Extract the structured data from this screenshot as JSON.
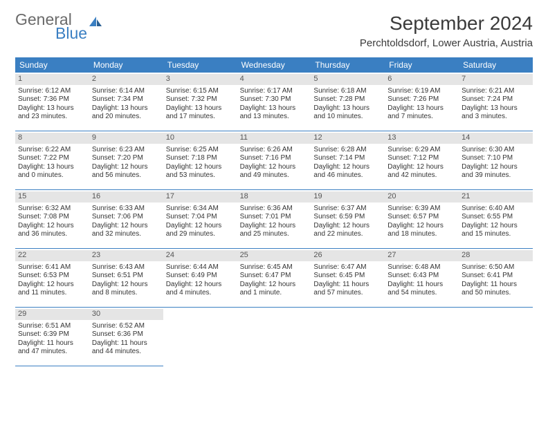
{
  "logo": {
    "text1": "General",
    "text2": "Blue"
  },
  "title": "September 2024",
  "location": "Perchtoldsdorf, Lower Austria, Austria",
  "colors": {
    "header_bg": "#3a7fc2",
    "header_text": "#ffffff",
    "daynum_bg": "#e5e5e5",
    "border": "#3a7fc2",
    "logo_gray": "#6a6a6a",
    "logo_blue": "#3a7fc2"
  },
  "day_headers": [
    "Sunday",
    "Monday",
    "Tuesday",
    "Wednesday",
    "Thursday",
    "Friday",
    "Saturday"
  ],
  "days": [
    {
      "n": "1",
      "sunrise": "Sunrise: 6:12 AM",
      "sunset": "Sunset: 7:36 PM",
      "d1": "Daylight: 13 hours",
      "d2": "and 23 minutes."
    },
    {
      "n": "2",
      "sunrise": "Sunrise: 6:14 AM",
      "sunset": "Sunset: 7:34 PM",
      "d1": "Daylight: 13 hours",
      "d2": "and 20 minutes."
    },
    {
      "n": "3",
      "sunrise": "Sunrise: 6:15 AM",
      "sunset": "Sunset: 7:32 PM",
      "d1": "Daylight: 13 hours",
      "d2": "and 17 minutes."
    },
    {
      "n": "4",
      "sunrise": "Sunrise: 6:17 AM",
      "sunset": "Sunset: 7:30 PM",
      "d1": "Daylight: 13 hours",
      "d2": "and 13 minutes."
    },
    {
      "n": "5",
      "sunrise": "Sunrise: 6:18 AM",
      "sunset": "Sunset: 7:28 PM",
      "d1": "Daylight: 13 hours",
      "d2": "and 10 minutes."
    },
    {
      "n": "6",
      "sunrise": "Sunrise: 6:19 AM",
      "sunset": "Sunset: 7:26 PM",
      "d1": "Daylight: 13 hours",
      "d2": "and 7 minutes."
    },
    {
      "n": "7",
      "sunrise": "Sunrise: 6:21 AM",
      "sunset": "Sunset: 7:24 PM",
      "d1": "Daylight: 13 hours",
      "d2": "and 3 minutes."
    },
    {
      "n": "8",
      "sunrise": "Sunrise: 6:22 AM",
      "sunset": "Sunset: 7:22 PM",
      "d1": "Daylight: 13 hours",
      "d2": "and 0 minutes."
    },
    {
      "n": "9",
      "sunrise": "Sunrise: 6:23 AM",
      "sunset": "Sunset: 7:20 PM",
      "d1": "Daylight: 12 hours",
      "d2": "and 56 minutes."
    },
    {
      "n": "10",
      "sunrise": "Sunrise: 6:25 AM",
      "sunset": "Sunset: 7:18 PM",
      "d1": "Daylight: 12 hours",
      "d2": "and 53 minutes."
    },
    {
      "n": "11",
      "sunrise": "Sunrise: 6:26 AM",
      "sunset": "Sunset: 7:16 PM",
      "d1": "Daylight: 12 hours",
      "d2": "and 49 minutes."
    },
    {
      "n": "12",
      "sunrise": "Sunrise: 6:28 AM",
      "sunset": "Sunset: 7:14 PM",
      "d1": "Daylight: 12 hours",
      "d2": "and 46 minutes."
    },
    {
      "n": "13",
      "sunrise": "Sunrise: 6:29 AM",
      "sunset": "Sunset: 7:12 PM",
      "d1": "Daylight: 12 hours",
      "d2": "and 42 minutes."
    },
    {
      "n": "14",
      "sunrise": "Sunrise: 6:30 AM",
      "sunset": "Sunset: 7:10 PM",
      "d1": "Daylight: 12 hours",
      "d2": "and 39 minutes."
    },
    {
      "n": "15",
      "sunrise": "Sunrise: 6:32 AM",
      "sunset": "Sunset: 7:08 PM",
      "d1": "Daylight: 12 hours",
      "d2": "and 36 minutes."
    },
    {
      "n": "16",
      "sunrise": "Sunrise: 6:33 AM",
      "sunset": "Sunset: 7:06 PM",
      "d1": "Daylight: 12 hours",
      "d2": "and 32 minutes."
    },
    {
      "n": "17",
      "sunrise": "Sunrise: 6:34 AM",
      "sunset": "Sunset: 7:04 PM",
      "d1": "Daylight: 12 hours",
      "d2": "and 29 minutes."
    },
    {
      "n": "18",
      "sunrise": "Sunrise: 6:36 AM",
      "sunset": "Sunset: 7:01 PM",
      "d1": "Daylight: 12 hours",
      "d2": "and 25 minutes."
    },
    {
      "n": "19",
      "sunrise": "Sunrise: 6:37 AM",
      "sunset": "Sunset: 6:59 PM",
      "d1": "Daylight: 12 hours",
      "d2": "and 22 minutes."
    },
    {
      "n": "20",
      "sunrise": "Sunrise: 6:39 AM",
      "sunset": "Sunset: 6:57 PM",
      "d1": "Daylight: 12 hours",
      "d2": "and 18 minutes."
    },
    {
      "n": "21",
      "sunrise": "Sunrise: 6:40 AM",
      "sunset": "Sunset: 6:55 PM",
      "d1": "Daylight: 12 hours",
      "d2": "and 15 minutes."
    },
    {
      "n": "22",
      "sunrise": "Sunrise: 6:41 AM",
      "sunset": "Sunset: 6:53 PM",
      "d1": "Daylight: 12 hours",
      "d2": "and 11 minutes."
    },
    {
      "n": "23",
      "sunrise": "Sunrise: 6:43 AM",
      "sunset": "Sunset: 6:51 PM",
      "d1": "Daylight: 12 hours",
      "d2": "and 8 minutes."
    },
    {
      "n": "24",
      "sunrise": "Sunrise: 6:44 AM",
      "sunset": "Sunset: 6:49 PM",
      "d1": "Daylight: 12 hours",
      "d2": "and 4 minutes."
    },
    {
      "n": "25",
      "sunrise": "Sunrise: 6:45 AM",
      "sunset": "Sunset: 6:47 PM",
      "d1": "Daylight: 12 hours",
      "d2": "and 1 minute."
    },
    {
      "n": "26",
      "sunrise": "Sunrise: 6:47 AM",
      "sunset": "Sunset: 6:45 PM",
      "d1": "Daylight: 11 hours",
      "d2": "and 57 minutes."
    },
    {
      "n": "27",
      "sunrise": "Sunrise: 6:48 AM",
      "sunset": "Sunset: 6:43 PM",
      "d1": "Daylight: 11 hours",
      "d2": "and 54 minutes."
    },
    {
      "n": "28",
      "sunrise": "Sunrise: 6:50 AM",
      "sunset": "Sunset: 6:41 PM",
      "d1": "Daylight: 11 hours",
      "d2": "and 50 minutes."
    },
    {
      "n": "29",
      "sunrise": "Sunrise: 6:51 AM",
      "sunset": "Sunset: 6:39 PM",
      "d1": "Daylight: 11 hours",
      "d2": "and 47 minutes."
    },
    {
      "n": "30",
      "sunrise": "Sunrise: 6:52 AM",
      "sunset": "Sunset: 6:36 PM",
      "d1": "Daylight: 11 hours",
      "d2": "and 44 minutes."
    }
  ],
  "trailing_empty": 5
}
